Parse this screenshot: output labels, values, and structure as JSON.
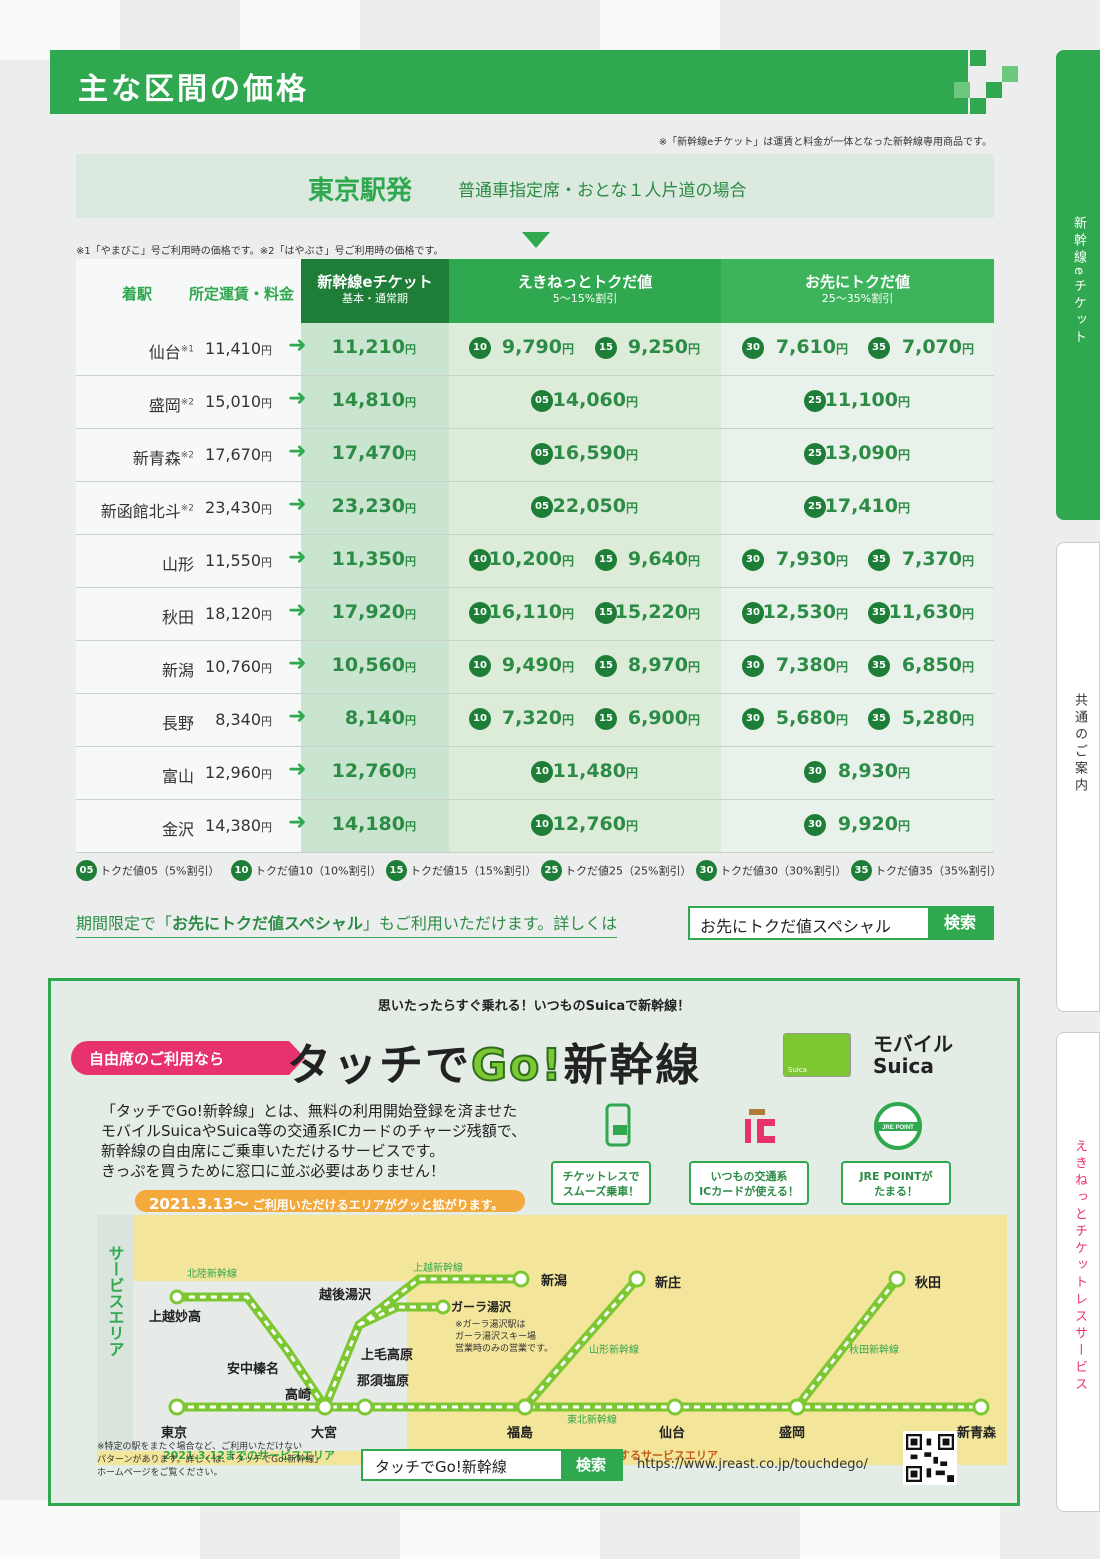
{
  "header": {
    "title": "主な区間の価格"
  },
  "note_top": "※「新幹線eチケット」は運賃と料金が一体となった新幹線専用商品です。",
  "origin": {
    "title": "東京駅発",
    "subtitle": "普通車指定席・おとな１人片道の場合"
  },
  "note_left": "※1「やまびこ」号ご利用時の価格です。※2「はやぶさ」号ご利用時の価格です。",
  "table": {
    "headers": {
      "station": "着駅",
      "fare": "所定運賃・料金",
      "eticket": "新幹線eチケット",
      "eticket_sub": "基本・通常期",
      "tokuda": "えきねっとトクだ値",
      "tokuda_sub": "5～15%割引",
      "osaki": "お先にトクだ値",
      "osaki_sub": "25～35%割引"
    },
    "yen": "円",
    "rows": [
      {
        "station": "仙台",
        "mark": "※1",
        "fare": "11,410",
        "eticket": "11,210",
        "tokuda": [
          {
            "badge": "10",
            "value": "9,790"
          },
          {
            "badge": "15",
            "value": "9,250"
          }
        ],
        "osaki": [
          {
            "badge": "30",
            "value": "7,610"
          },
          {
            "badge": "35",
            "value": "7,070"
          }
        ]
      },
      {
        "station": "盛岡",
        "mark": "※2",
        "fare": "15,010",
        "eticket": "14,810",
        "tokuda": [
          {
            "badge": "05",
            "value": "14,060"
          }
        ],
        "osaki": [
          {
            "badge": "25",
            "value": "11,100"
          }
        ]
      },
      {
        "station": "新青森",
        "mark": "※2",
        "fare": "17,670",
        "eticket": "17,470",
        "tokuda": [
          {
            "badge": "05",
            "value": "16,590"
          }
        ],
        "osaki": [
          {
            "badge": "25",
            "value": "13,090"
          }
        ]
      },
      {
        "station": "新函館北斗",
        "mark": "※2",
        "fare": "23,430",
        "eticket": "23,230",
        "tokuda": [
          {
            "badge": "05",
            "value": "22,050"
          }
        ],
        "osaki": [
          {
            "badge": "25",
            "value": "17,410"
          }
        ]
      },
      {
        "station": "山形",
        "mark": "",
        "fare": "11,550",
        "eticket": "11,350",
        "tokuda": [
          {
            "badge": "10",
            "value": "10,200"
          },
          {
            "badge": "15",
            "value": "9,640"
          }
        ],
        "osaki": [
          {
            "badge": "30",
            "value": "7,930"
          },
          {
            "badge": "35",
            "value": "7,370"
          }
        ]
      },
      {
        "station": "秋田",
        "mark": "",
        "fare": "18,120",
        "eticket": "17,920",
        "tokuda": [
          {
            "badge": "10",
            "value": "16,110"
          },
          {
            "badge": "15",
            "value": "15,220"
          }
        ],
        "osaki": [
          {
            "badge": "30",
            "value": "12,530"
          },
          {
            "badge": "35",
            "value": "11,630"
          }
        ]
      },
      {
        "station": "新潟",
        "mark": "",
        "fare": "10,760",
        "eticket": "10,560",
        "tokuda": [
          {
            "badge": "10",
            "value": "9,490"
          },
          {
            "badge": "15",
            "value": "8,970"
          }
        ],
        "osaki": [
          {
            "badge": "30",
            "value": "7,380"
          },
          {
            "badge": "35",
            "value": "6,850"
          }
        ]
      },
      {
        "station": "長野",
        "mark": "",
        "fare": "8,340",
        "eticket": "8,140",
        "tokuda": [
          {
            "badge": "10",
            "value": "7,320"
          },
          {
            "badge": "15",
            "value": "6,900"
          }
        ],
        "osaki": [
          {
            "badge": "30",
            "value": "5,680"
          },
          {
            "badge": "35",
            "value": "5,280"
          }
        ]
      },
      {
        "station": "富山",
        "mark": "",
        "fare": "12,960",
        "eticket": "12,760",
        "tokuda": [
          {
            "badge": "10",
            "value": "11,480"
          }
        ],
        "osaki": [
          {
            "badge": "30",
            "value": "8,930"
          }
        ]
      },
      {
        "station": "金沢",
        "mark": "",
        "fare": "14,380",
        "eticket": "14,180",
        "tokuda": [
          {
            "badge": "10",
            "value": "12,760"
          }
        ],
        "osaki": [
          {
            "badge": "30",
            "value": "9,920"
          }
        ]
      }
    ]
  },
  "legend": [
    {
      "badge": "05",
      "label": "トクだ値05（5%割引）"
    },
    {
      "badge": "10",
      "label": "トクだ値10（10%割引）"
    },
    {
      "badge": "15",
      "label": "トクだ値15（15%割引）"
    },
    {
      "badge": "25",
      "label": "トクだ値25（25%割引）"
    },
    {
      "badge": "30",
      "label": "トクだ値30（30%割引）"
    },
    {
      "badge": "35",
      "label": "トクだ値35（35%割引）"
    }
  ],
  "special": {
    "pre": "期間限定で「",
    "strong": "お先にトクだ値スペシャル",
    "post": "」もご利用いただけます。詳しくは",
    "search_query": "お先にトクだ値スペシャル",
    "search_button": "検索"
  },
  "side_tabs": [
    "新幹線eチケット",
    "共通のご案内",
    "えきねっとチケットレスサービス"
  ],
  "touch": {
    "headline": "思いたったらすぐ乗れる！いつものSuicaで新幹線！",
    "pill": "自由席のご利用なら",
    "title_a": "タッチで",
    "title_go": "Go!",
    "title_b": "新幹線",
    "card_label": "Suica",
    "mobile_line1": "モバイル",
    "mobile_line2": "Suica",
    "desc": [
      "「タッチでGo!新幹線」とは、無料の利用開始登録を済ませた",
      "モバイルSuicaやSuica等の交通系ICカードのチャージ残額で、",
      "新幹線の自由席にご乗車いただけるサービスです。",
      "きっぷを買うために窓口に並ぶ必要はありません！"
    ],
    "features": [
      {
        "line1": "チケットレスで",
        "line2": "スムーズ乗車！"
      },
      {
        "line1": "いつもの交通系",
        "line2": "ICカードが使える！"
      },
      {
        "line1": "JRE POINTが",
        "line2": "たまる！"
      }
    ],
    "jre_point_logo": "JRE POINT",
    "area_date": "2021.3.13～",
    "area_text": "ご利用いただけるエリアがグッと拡がります。",
    "service_area_label": "サービスエリア",
    "map_labels": {
      "old_area": "2021.3.12までのサービスエリア",
      "new_area": "拡大するサービスエリア",
      "gala_note1": "※ガーラ湯沢駅は",
      "gala_note2": "ガーラ湯沢スキー場",
      "gala_note3": "営業時のみの営業です。"
    },
    "lines": [
      "北陸新幹線",
      "上越新幹線",
      "山形新幹線",
      "秋田新幹線",
      "東北新幹線"
    ],
    "stations": [
      "上越妙高",
      "安中榛名",
      "高崎",
      "越後湯沢",
      "新潟",
      "ガーラ湯沢",
      "上毛高原",
      "那須塩原",
      "東京",
      "大宮",
      "福島",
      "仙台",
      "盛岡",
      "新青森",
      "新庄",
      "秋田"
    ],
    "footnote": [
      "※特定の駅をまたぐ場合など、ご利用いただけない",
      "パターンがあります。詳しくは、「タッチでGo!新幹線」",
      "ホームページをご覧ください。"
    ],
    "search_query": "タッチでGo!新幹線",
    "search_button": "検索",
    "url": "https://www.jreast.co.jp/touchdego/"
  },
  "colors": {
    "green": "#2fa84f",
    "dark_green": "#1e7e38",
    "pink": "#e8326d",
    "orange": "#f3a93b",
    "yellow_area": "#f3e59a"
  },
  "icons": [
    "phone-ticket-icon",
    "ic-card-icon",
    "jre-point-icon",
    "qr-code-icon",
    "arrow-right-icon"
  ]
}
